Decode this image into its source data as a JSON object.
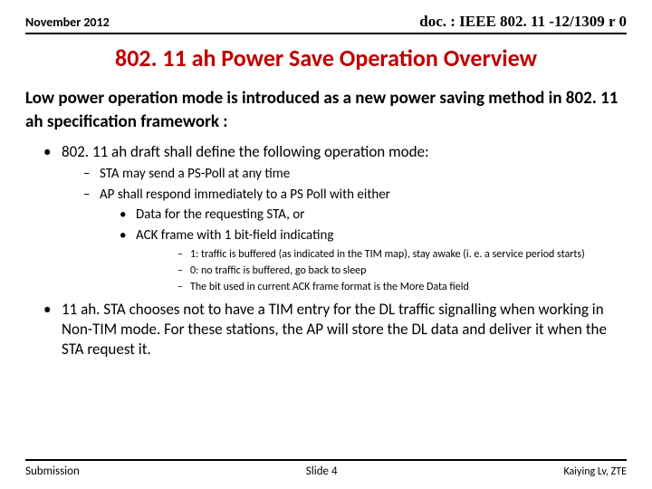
{
  "header": {
    "date": "November 2012",
    "doc": "doc. : IEEE 802. 11 -12/1309 r 0"
  },
  "title": {
    "text": "802. 11 ah Power Save Operation Overview",
    "color": "#c00000",
    "fontsize": 26
  },
  "intro": {
    "text": "Low power operation mode is introduced as a new power saving method in 802. 11 ah specification framework :",
    "fontsize": 19
  },
  "bullets": {
    "lvl1_fontsize": 17,
    "lvl2_fontsize": 15,
    "lvl3_fontsize": 15,
    "lvl4_fontsize": 12,
    "items": [
      {
        "text": "802. 11 ah draft shall define the following operation mode:",
        "children": [
          {
            "text": "STA may send a PS-Poll at any time"
          },
          {
            "text": "AP shall respond immediately to a PS Poll with either",
            "children": [
              {
                "text": "Data for the requesting STA, or"
              },
              {
                "text": "ACK frame with 1 bit-field indicating",
                "children": [
                  {
                    "text": "1: traffic is buffered (as indicated in the TIM map), stay awake (i. e. a service period starts)"
                  },
                  {
                    "text": "0: no traffic is buffered, go back to sleep"
                  },
                  {
                    "text": "The bit used in current ACK frame format is the More Data field"
                  }
                ]
              }
            ]
          }
        ]
      },
      {
        "text": "11 ah. STA chooses not to have a TIM entry for the DL traffic signalling when working in Non-TIM mode. For these stations, the AP will store the DL data and deliver it when the STA request it."
      }
    ]
  },
  "footer": {
    "left": "Submission",
    "center": "Slide 4",
    "right": "Kaiying Lv, ZTE"
  }
}
